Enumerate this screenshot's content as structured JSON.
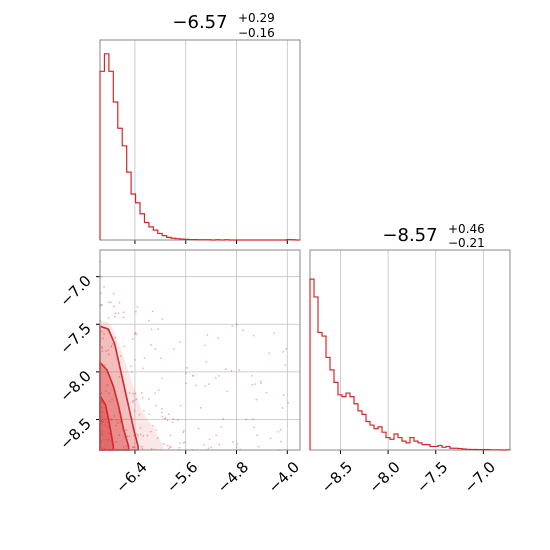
{
  "chart_data": [
    {
      "type": "histogram",
      "panel": "top-left",
      "title": {
        "value": "−6.57",
        "plus": "+0.29",
        "minus": "−0.16"
      },
      "xlim": [
        -6.95,
        -3.8
      ],
      "xticks": [
        -6.4,
        -5.6,
        -4.8,
        -4.0
      ],
      "bin_edges_start": -6.95,
      "bin_width": 0.07,
      "density": [
        0.77,
        0.85,
        0.77,
        0.63,
        0.51,
        0.43,
        0.31,
        0.21,
        0.17,
        0.12,
        0.08,
        0.06,
        0.045,
        0.03,
        0.02,
        0.012,
        0.008,
        0.006,
        0.004,
        0.003,
        0.002,
        0.002,
        0.001,
        0.001,
        0.001,
        0.0,
        0.001,
        0.0,
        0.001,
        0.0,
        0.0,
        0.0,
        0.0,
        0.0,
        0.0,
        0.0,
        0.0,
        0.0,
        0.0,
        0.0,
        0.0,
        0.0,
        0.002,
        0.001,
        0.0
      ],
      "ymax": 0.85
    },
    {
      "type": "histogram",
      "panel": "bottom-right",
      "title": {
        "value": "−8.57",
        "plus": "+0.46",
        "minus": "−0.21"
      },
      "xlim": [
        -8.82,
        -6.72
      ],
      "xticks": [
        -8.5,
        -8.0,
        -7.5,
        -7.0
      ],
      "bin_edges_start": -8.82,
      "bin_width": 0.042,
      "density": [
        0.96,
        0.86,
        0.66,
        0.64,
        0.52,
        0.45,
        0.38,
        0.31,
        0.3,
        0.32,
        0.3,
        0.26,
        0.22,
        0.2,
        0.16,
        0.14,
        0.12,
        0.13,
        0.1,
        0.07,
        0.06,
        0.09,
        0.07,
        0.05,
        0.04,
        0.07,
        0.05,
        0.04,
        0.03,
        0.03,
        0.02,
        0.02,
        0.025,
        0.015,
        0.02,
        0.01,
        0.01,
        0.008,
        0.006,
        0.004,
        0.003,
        0.003,
        0.002,
        0.002,
        0.002,
        0.001,
        0.001,
        0.001,
        0.0,
        0.001
      ],
      "ymax": 1.0
    },
    {
      "type": "scatter",
      "panel": "bottom-left",
      "xlim": [
        -6.95,
        -3.8
      ],
      "ylim": [
        -8.82,
        -6.72
      ],
      "xticks": [
        -6.4,
        -5.6,
        -4.8,
        -4.0
      ],
      "yticks": [
        -7.0,
        -7.5,
        -8.0,
        -8.5
      ],
      "contour_levels": [
        [
          [
            -6.95,
            -7.52
          ],
          [
            -6.82,
            -7.55
          ],
          [
            -6.72,
            -7.7
          ],
          [
            -6.62,
            -8.0
          ],
          [
            -6.52,
            -8.3
          ],
          [
            -6.42,
            -8.6
          ],
          [
            -6.35,
            -8.78
          ]
        ],
        [
          [
            -6.95,
            -7.9
          ],
          [
            -6.84,
            -7.98
          ],
          [
            -6.74,
            -8.15
          ],
          [
            -6.66,
            -8.35
          ],
          [
            -6.58,
            -8.6
          ],
          [
            -6.5,
            -8.78
          ]
        ],
        [
          [
            -6.95,
            -8.25
          ],
          [
            -6.86,
            -8.35
          ],
          [
            -6.8,
            -8.55
          ],
          [
            -6.74,
            -8.78
          ]
        ]
      ],
      "outer_contour": [
        [
          -6.95,
          -7.45
        ],
        [
          -6.78,
          -7.5
        ],
        [
          -6.6,
          -7.8
        ],
        [
          -6.45,
          -8.1
        ],
        [
          -6.3,
          -8.4
        ],
        [
          -6.1,
          -8.6
        ],
        [
          -5.95,
          -8.78
        ]
      ],
      "color": "#d62728"
    }
  ],
  "colors": {
    "accent": "#d62728",
    "grid": "#c0c0c0",
    "axis": "#888888"
  }
}
